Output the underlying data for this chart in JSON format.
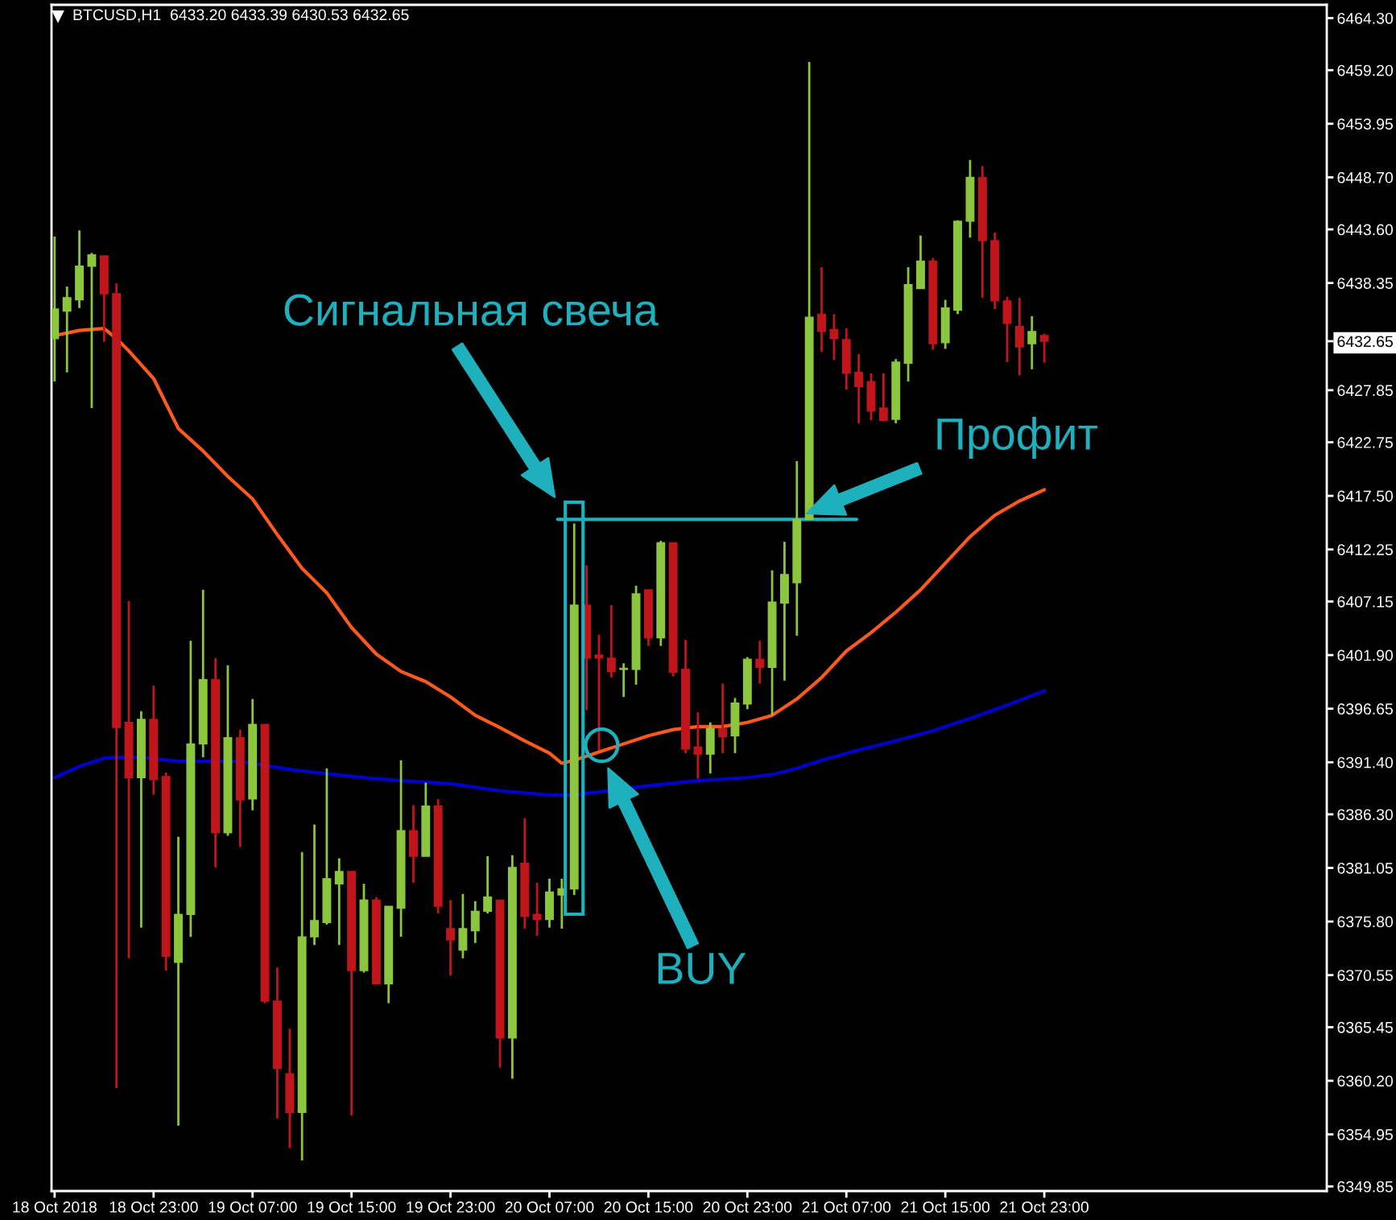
{
  "chart_data": {
    "type": "candlestick",
    "title": "BTCUSD,H1  6433.20 6433.39 6430.53 6432.65",
    "x": [
      "2018-10-18T15:00",
      "2018-10-18T16:00",
      "2018-10-18T17:00",
      "2018-10-18T18:00",
      "2018-10-18T19:00",
      "2018-10-18T20:00",
      "2018-10-18T21:00",
      "2018-10-18T22:00",
      "2018-10-18T23:00",
      "2018-10-19T00:00",
      "2018-10-19T01:00",
      "2018-10-19T02:00",
      "2018-10-19T03:00",
      "2018-10-19T04:00",
      "2018-10-19T05:00",
      "2018-10-19T06:00",
      "2018-10-19T07:00",
      "2018-10-19T08:00",
      "2018-10-19T09:00",
      "2018-10-19T10:00",
      "2018-10-19T11:00",
      "2018-10-19T12:00",
      "2018-10-19T13:00",
      "2018-10-19T14:00",
      "2018-10-19T15:00",
      "2018-10-19T16:00",
      "2018-10-19T17:00",
      "2018-10-19T18:00",
      "2018-10-19T19:00",
      "2018-10-19T20:00",
      "2018-10-19T21:00",
      "2018-10-19T22:00",
      "2018-10-19T23:00",
      "2018-10-20T00:00",
      "2018-10-20T01:00",
      "2018-10-20T02:00",
      "2018-10-20T03:00",
      "2018-10-20T04:00",
      "2018-10-20T05:00",
      "2018-10-20T06:00",
      "2018-10-20T07:00",
      "2018-10-20T08:00",
      "2018-10-20T09:00",
      "2018-10-20T10:00",
      "2018-10-20T11:00",
      "2018-10-20T12:00",
      "2018-10-20T13:00",
      "2018-10-20T14:00",
      "2018-10-20T15:00",
      "2018-10-20T16:00",
      "2018-10-20T17:00",
      "2018-10-20T18:00",
      "2018-10-20T19:00",
      "2018-10-20T20:00",
      "2018-10-20T21:00",
      "2018-10-20T22:00",
      "2018-10-20T23:00",
      "2018-10-21T00:00",
      "2018-10-21T01:00",
      "2018-10-21T02:00",
      "2018-10-21T03:00",
      "2018-10-21T04:00",
      "2018-10-21T05:00",
      "2018-10-21T06:00",
      "2018-10-21T07:00",
      "2018-10-21T08:00",
      "2018-10-21T09:00",
      "2018-10-21T10:00",
      "2018-10-21T11:00",
      "2018-10-21T12:00",
      "2018-10-21T13:00",
      "2018-10-21T14:00",
      "2018-10-21T15:00",
      "2018-10-21T16:00",
      "2018-10-21T17:00",
      "2018-10-21T18:00",
      "2018-10-21T19:00",
      "2018-10-21T20:00",
      "2018-10-21T21:00",
      "2018-10-21T22:00",
      "2018-10-21T23:00"
    ],
    "ohlc": [
      [
        6432.9,
        6442.9,
        6428.7,
        6435.8
      ],
      [
        6435.6,
        6438.0,
        6429.6,
        6436.9
      ],
      [
        6436.7,
        6443.5,
        6435.9,
        6440.0
      ],
      [
        6440.0,
        6441.3,
        6426.1,
        6441.1
      ],
      [
        6441.0,
        6441.0,
        6432.6,
        6437.3
      ],
      [
        6437.3,
        6438.3,
        6359.5,
        6394.8
      ],
      [
        6395.3,
        6407.2,
        6372.2,
        6389.9
      ],
      [
        6389.9,
        6396.4,
        6375.2,
        6395.6
      ],
      [
        6395.6,
        6398.9,
        6388.2,
        6389.7
      ],
      [
        6390.0,
        6390.4,
        6371.0,
        6372.4
      ],
      [
        6371.8,
        6384.1,
        6355.8,
        6376.5
      ],
      [
        6376.5,
        6403.3,
        6374.3,
        6393.2
      ],
      [
        6393.2,
        6408.3,
        6391.9,
        6399.5
      ],
      [
        6399.5,
        6401.6,
        6381.1,
        6384.5
      ],
      [
        6384.5,
        6400.9,
        6384.2,
        6393.8
      ],
      [
        6393.8,
        6394.6,
        6383.1,
        6387.7
      ],
      [
        6387.8,
        6397.6,
        6386.7,
        6395.1
      ],
      [
        6395.1,
        6395.1,
        6367.8,
        6368.0
      ],
      [
        6368.0,
        6371.3,
        6356.5,
        6361.4
      ],
      [
        6360.9,
        6365.3,
        6353.6,
        6357.1
      ],
      [
        6357.1,
        6382.6,
        6352.4,
        6374.3
      ],
      [
        6374.3,
        6385.3,
        6373.5,
        6375.9
      ],
      [
        6375.7,
        6390.8,
        6375.5,
        6380.0
      ],
      [
        6379.5,
        6382.0,
        6373.5,
        6380.7
      ],
      [
        6380.7,
        6380.7,
        6356.8,
        6371.0
      ],
      [
        6371.0,
        6379.5,
        6370.8,
        6377.9
      ],
      [
        6377.9,
        6378.2,
        6369.7,
        6369.7
      ],
      [
        6369.7,
        6377.3,
        6367.8,
        6377.3
      ],
      [
        6377.1,
        6391.6,
        6374.3,
        6384.7
      ],
      [
        6384.7,
        6387.2,
        6379.6,
        6382.2
      ],
      [
        6382.2,
        6389.4,
        6382.2,
        6387.1
      ],
      [
        6387.1,
        6387.8,
        6376.6,
        6377.3
      ],
      [
        6375.1,
        6377.9,
        6370.5,
        6374.0
      ],
      [
        6373.0,
        6378.5,
        6372.2,
        6375.1
      ],
      [
        6374.9,
        6377.8,
        6373.7,
        6376.8
      ],
      [
        6376.8,
        6382.2,
        6376.6,
        6378.2
      ],
      [
        6377.9,
        6377.9,
        6361.5,
        6364.4
      ],
      [
        6364.4,
        6382.3,
        6360.4,
        6381.1
      ],
      [
        6381.5,
        6385.9,
        6375.1,
        6376.3
      ],
      [
        6376.5,
        6379.6,
        6374.4,
        6376.0
      ],
      [
        6376.0,
        6380.0,
        6375.2,
        6378.7
      ],
      [
        6378.4,
        6380.0,
        6375.1,
        6379.0
      ],
      [
        6379.0,
        6414.8,
        6378.4,
        6406.8
      ],
      [
        6406.8,
        6410.7,
        6396.5,
        6401.6
      ],
      [
        6401.9,
        6403.9,
        6392.6,
        6401.6
      ],
      [
        6401.6,
        6406.8,
        6399.7,
        6400.3
      ],
      [
        6400.5,
        6401.1,
        6397.8,
        6400.6
      ],
      [
        6400.5,
        6408.7,
        6399.0,
        6407.9
      ],
      [
        6408.3,
        6408.3,
        6402.8,
        6403.6
      ],
      [
        6403.6,
        6413.1,
        6402.8,
        6412.9
      ],
      [
        6412.9,
        6412.9,
        6399.8,
        6400.2
      ],
      [
        6400.5,
        6403.4,
        6392.3,
        6392.7
      ],
      [
        6392.9,
        6396.3,
        6389.8,
        6392.2
      ],
      [
        6392.2,
        6395.3,
        6390.3,
        6394.7
      ],
      [
        6394.7,
        6399.1,
        6392.3,
        6393.9
      ],
      [
        6394.0,
        6397.7,
        6392.3,
        6397.2
      ],
      [
        6397.1,
        6401.7,
        6396.6,
        6401.5
      ],
      [
        6401.5,
        6403.3,
        6399.1,
        6400.7
      ],
      [
        6400.7,
        6410.2,
        6396.0,
        6407.1
      ],
      [
        6407.0,
        6413.0,
        6399.4,
        6409.8
      ],
      [
        6409.0,
        6420.9,
        6403.8,
        6415.2
      ],
      [
        6415.2,
        6460.0,
        6415.2,
        6435.0
      ],
      [
        6435.3,
        6439.9,
        6431.6,
        6433.6
      ],
      [
        6433.8,
        6435.3,
        6430.8,
        6432.9
      ],
      [
        6432.8,
        6433.9,
        6427.9,
        6429.5
      ],
      [
        6429.6,
        6431.4,
        6424.6,
        6428.2
      ],
      [
        6428.7,
        6429.5,
        6424.9,
        6425.8
      ],
      [
        6426.1,
        6429.5,
        6424.8,
        6424.9
      ],
      [
        6425.0,
        6430.9,
        6424.6,
        6430.6
      ],
      [
        6430.5,
        6439.9,
        6428.7,
        6438.2
      ],
      [
        6437.8,
        6443.0,
        6437.8,
        6440.5
      ],
      [
        6440.5,
        6440.8,
        6431.8,
        6432.4
      ],
      [
        6432.5,
        6436.7,
        6431.9,
        6435.9
      ],
      [
        6435.7,
        6444.5,
        6435.3,
        6444.4
      ],
      [
        6444.4,
        6450.4,
        6442.8,
        6448.7
      ],
      [
        6448.7,
        6449.8,
        6436.9,
        6442.5
      ],
      [
        6442.5,
        6443.3,
        6435.8,
        6436.6
      ],
      [
        6436.6,
        6437.0,
        6430.6,
        6434.4
      ],
      [
        6434.1,
        6436.9,
        6429.3,
        6432.1
      ],
      [
        6432.4,
        6435.1,
        6429.9,
        6433.6
      ],
      [
        6433.2,
        6433.39,
        6430.53,
        6432.65
      ]
    ],
    "colors": [
      "#8cc63e",
      "#8cc63e",
      "#8cc63e",
      "#8cc63e",
      "#c0161b",
      "#c0161b",
      "#c0161b",
      "#8cc63e",
      "#c0161b",
      "#c0161b",
      "#8cc63e",
      "#8cc63e",
      "#8cc63e",
      "#c0161b",
      "#8cc63e",
      "#c0161b",
      "#8cc63e",
      "#c0161b",
      "#c0161b",
      "#c0161b",
      "#8cc63e",
      "#8cc63e",
      "#8cc63e",
      "#8cc63e",
      "#c0161b",
      "#8cc63e",
      "#c0161b",
      "#8cc63e",
      "#8cc63e",
      "#c0161b",
      "#8cc63e",
      "#c0161b",
      "#c0161b",
      "#8cc63e",
      "#8cc63e",
      "#8cc63e",
      "#c0161b",
      "#8cc63e",
      "#c0161b",
      "#c0161b",
      "#8cc63e",
      "#8cc63e",
      "#8cc63e",
      "#c0161b",
      "#c0161b",
      "#c0161b",
      "#8cc63e",
      "#8cc63e",
      "#c0161b",
      "#8cc63e",
      "#c0161b",
      "#c0161b",
      "#c0161b",
      "#8cc63e",
      "#c0161b",
      "#8cc63e",
      "#8cc63e",
      "#c0161b",
      "#8cc63e",
      "#8cc63e",
      "#8cc63e",
      "#8cc63e",
      "#c0161b",
      "#c0161b",
      "#c0161b",
      "#c0161b",
      "#c0161b",
      "#c0161b",
      "#8cc63e",
      "#8cc63e",
      "#8cc63e",
      "#c0161b",
      "#8cc63e",
      "#8cc63e",
      "#8cc63e",
      "#c0161b",
      "#c0161b",
      "#c0161b",
      "#c0161b",
      "#8cc63e",
      "#c0161b"
    ],
    "series": [
      {
        "type": "line",
        "color": "#ff5a1e",
        "x": [
          "2018-10-18T15:00",
          "2018-10-18T17:00",
          "2018-10-18T19:00",
          "2018-10-18T20:00",
          "2018-10-18T21:00",
          "2018-10-18T23:00",
          "2018-10-19T01:00",
          "2018-10-19T03:00",
          "2018-10-19T05:00",
          "2018-10-19T07:00",
          "2018-10-19T09:00",
          "2018-10-19T11:00",
          "2018-10-19T13:00",
          "2018-10-19T15:00",
          "2018-10-19T17:00",
          "2018-10-19T19:00",
          "2018-10-19T21:00",
          "2018-10-19T23:00",
          "2018-10-20T01:00",
          "2018-10-20T03:00",
          "2018-10-20T05:00",
          "2018-10-20T07:00",
          "2018-10-20T08:00",
          "2018-10-20T09:00",
          "2018-10-20T11:00",
          "2018-10-20T13:00",
          "2018-10-20T15:00",
          "2018-10-20T17:00",
          "2018-10-20T19:00",
          "2018-10-20T21:00",
          "2018-10-20T23:00",
          "2018-10-21T01:00",
          "2018-10-21T03:00",
          "2018-10-21T05:00",
          "2018-10-21T07:00",
          "2018-10-21T09:00",
          "2018-10-21T11:00",
          "2018-10-21T13:00",
          "2018-10-21T15:00",
          "2018-10-21T17:00",
          "2018-10-21T19:00",
          "2018-10-21T21:00",
          "2018-10-21T23:00"
        ],
        "values": [
          6433.2,
          6433.7,
          6433.9,
          6432.9,
          6431.7,
          6429.0,
          6424.1,
          6421.9,
          6419.4,
          6417.2,
          6413.7,
          6410.4,
          6408.0,
          6404.6,
          6402.0,
          6400.3,
          6399.3,
          6397.8,
          6396.0,
          6394.8,
          6393.5,
          6392.3,
          6391.3,
          6391.6,
          6392.4,
          6393.2,
          6394.0,
          6394.6,
          6394.9,
          6394.9,
          6395.3,
          6396.0,
          6397.6,
          6399.7,
          6402.3,
          6404.1,
          6406.1,
          6408.3,
          6410.9,
          6413.5,
          6415.6,
          6417.0,
          6418.1
        ]
      },
      {
        "type": "line",
        "color": "#0000cd",
        "x": [
          "2018-10-18T15:00",
          "2018-10-18T17:00",
          "2018-10-18T19:00",
          "2018-10-18T20:00",
          "2018-10-18T22:00",
          "2018-10-19T01:00",
          "2018-10-19T06:00",
          "2018-10-19T10:00",
          "2018-10-19T12:00",
          "2018-10-19T16:00",
          "2018-10-19T19:00",
          "2018-10-19T23:00",
          "2018-10-20T03:00",
          "2018-10-20T07:00",
          "2018-10-20T09:00",
          "2018-10-20T11:00",
          "2018-10-20T15:00",
          "2018-10-20T19:00",
          "2018-10-20T23:00",
          "2018-10-21T01:00",
          "2018-10-21T03:00",
          "2018-10-21T05:00",
          "2018-10-21T08:00",
          "2018-10-21T11:00",
          "2018-10-21T14:00",
          "2018-10-21T17:00",
          "2018-10-21T20:00",
          "2018-10-21T23:00"
        ],
        "values": [
          6389.9,
          6391.0,
          6391.8,
          6391.9,
          6391.9,
          6391.5,
          6391.5,
          6390.7,
          6390.4,
          6389.9,
          6389.6,
          6389.3,
          6388.6,
          6388.2,
          6388.2,
          6388.5,
          6389.1,
          6389.6,
          6389.9,
          6390.2,
          6390.8,
          6391.6,
          6392.6,
          6393.5,
          6394.5,
          6395.7,
          6397.0,
          6398.4
        ]
      },
      {
        "type": "line",
        "color": "#1eb0bd",
        "x": [
          "2018-10-20T07:40",
          "2018-10-21T07:50"
        ],
        "values": [
          6415.2,
          6415.2
        ]
      }
    ],
    "annotations": [
      "Сигнальная свеча",
      "Профит",
      "BUY"
    ],
    "xlim": [
      "2018-10-18T14:45",
      "2018-10-22T21:50"
    ],
    "ylim": [
      6349.4,
      6465.6
    ],
    "xticks": [
      {
        "value": "2018-10-18T15:00",
        "label": "18 Oct 2018"
      },
      {
        "value": "2018-10-18T23:00",
        "label": "18 Oct 23:00"
      },
      {
        "value": "2018-10-19T07:00",
        "label": "19 Oct 07:00"
      },
      {
        "value": "2018-10-19T15:00",
        "label": "19 Oct 15:00"
      },
      {
        "value": "2018-10-19T23:00",
        "label": "19 Oct 23:00"
      },
      {
        "value": "2018-10-20T07:00",
        "label": "20 Oct 07:00"
      },
      {
        "value": "2018-10-20T15:00",
        "label": "20 Oct 15:00"
      },
      {
        "value": "2018-10-20T23:00",
        "label": "20 Oct 23:00"
      },
      {
        "value": "2018-10-21T07:00",
        "label": "21 Oct 07:00"
      },
      {
        "value": "2018-10-21T15:00",
        "label": "21 Oct 15:00"
      },
      {
        "value": "2018-10-21T23:00",
        "label": "21 Oct 23:00"
      }
    ],
    "yticks": [
      {
        "value": 6464.3,
        "label": "6464.30"
      },
      {
        "value": 6459.2,
        "label": "6459.20"
      },
      6453.95,
      {
        "value": 6448.7,
        "label": "6448.70"
      },
      {
        "value": 6443.6,
        "label": "6443.60"
      },
      6438.35,
      6432.65,
      6427.85,
      6422.75,
      {
        "value": 6417.5,
        "label": "6417.50"
      },
      6412.25,
      6407.15,
      {
        "value": 6401.9,
        "label": "6401.90"
      },
      6396.65,
      {
        "value": 6391.4,
        "label": "6391.40"
      },
      {
        "value": 6386.3,
        "label": "6386.30"
      },
      6381.05,
      {
        "value": 6375.8,
        "label": "6375.80"
      },
      6370.55,
      6365.45,
      {
        "value": 6360.2,
        "label": "6360.20"
      },
      6354.95,
      6349.85
    ]
  }
}
